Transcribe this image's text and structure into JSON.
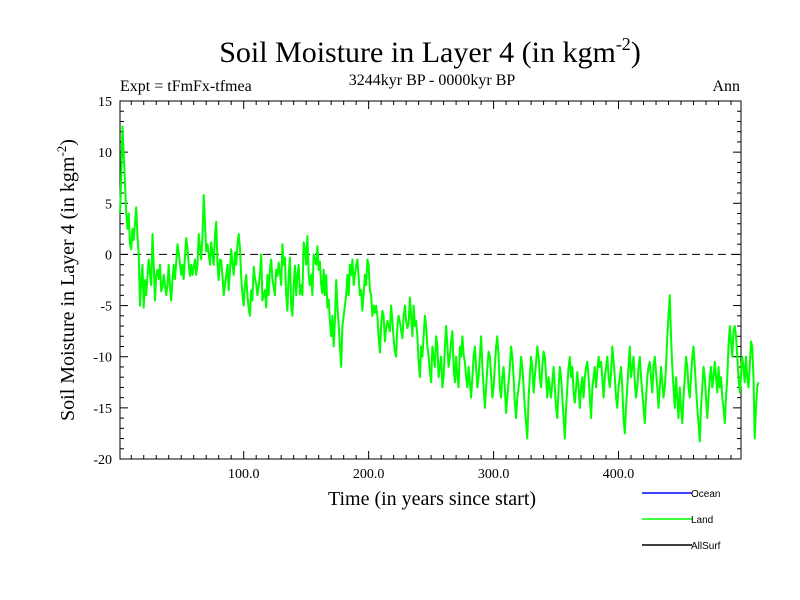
{
  "header": {
    "experiment": "Expt = tFmFx-tfmea",
    "period": "3244kyr BP - 0000kyr BP",
    "season": "Ann"
  },
  "chart_data": {
    "type": "line",
    "title": "Soil Moisture in Layer 4 (in kgm",
    "title_sup": "-2",
    "title_end": ")",
    "xlabel": "Time (in years since start)",
    "ylabel": "Soil Moisture in Layer 4 (in kgm",
    "ylabel_sup": "-2",
    "ylabel_end": ")",
    "xlim": [
      1,
      498
    ],
    "ylim": [
      -20,
      15
    ],
    "x_ticks": [
      100,
      200,
      300,
      400
    ],
    "x_tick_labels": [
      "100.0",
      "200.0",
      "300.0",
      "400.0"
    ],
    "y_ticks": [
      15,
      10,
      5,
      0,
      -5,
      -10,
      -15,
      -20
    ],
    "y_tick_labels": [
      "15",
      "10",
      "5",
      "0",
      "-5",
      "-10",
      "-15",
      "-20"
    ],
    "reference_line": 0,
    "legend": [
      {
        "name": "Ocean",
        "color": "#0000ff"
      },
      {
        "name": "Land",
        "color": "#00ff00"
      },
      {
        "name": "AllSurf",
        "color": "#000000"
      }
    ],
    "series": [
      {
        "name": "Land",
        "color": "#00ff00",
        "x_start": 1,
        "x_step": 1,
        "values": [
          4.0,
          7.5,
          12.5,
          9.8,
          7.0,
          4.1,
          2.5,
          4.0,
          1.0,
          0.5,
          2.5,
          1.4,
          3.0,
          4.6,
          1.8,
          0.0,
          -5.0,
          -2.5,
          -1.0,
          -5.2,
          -2.5,
          -4.0,
          -2.1,
          -0.5,
          -1.9,
          -3.0,
          2.0,
          -1.0,
          -4.5,
          -2.0,
          -1.5,
          -2.4,
          -1.0,
          -3.6,
          -3.2,
          -2.0,
          -2.9,
          -4.0,
          -3.0,
          -1.0,
          -3.2,
          -4.5,
          -2.4,
          -1.0,
          -2.4,
          -0.8,
          1.0,
          0.2,
          -1.0,
          -2.0,
          -1.0,
          -2.4,
          -0.2,
          1.6,
          0.6,
          -0.9,
          -2.1,
          -1.0,
          -2.0,
          -1.2,
          -0.5,
          -2.0,
          -1.0,
          2.0,
          0.6,
          -0.5,
          1.8,
          5.8,
          3.0,
          0.3,
          1.0,
          0.0,
          -1.0,
          1.2,
          0.0,
          -1.0,
          2.0,
          3.2,
          -1.0,
          -2.5,
          -0.5,
          -0.6,
          -2.2,
          -4.0,
          -3.0,
          -2.1,
          -1.0,
          -3.5,
          -1.5,
          0.5,
          -1.0,
          -2.0,
          0.2,
          -1.0,
          1.0,
          2.0,
          0.6,
          -2.2,
          -4.0,
          -5.0,
          -3.0,
          -2.0,
          -4.0,
          -5.3,
          -6.0,
          -3.5,
          -4.5,
          -1.2,
          -2.3,
          -2.9,
          -4.0,
          -3.0,
          -2.0,
          0.0,
          -4.5,
          -4.0,
          -3.5,
          -5.2,
          -2.0,
          -4.0,
          -1.5,
          -0.5,
          -2.4,
          -3.2,
          -4.0,
          -1.5,
          -2.1,
          -0.8,
          -1.8,
          -3.0,
          1.0,
          -1.0,
          -0.3,
          -4.0,
          -5.5,
          -2.0,
          -0.3,
          -5.0,
          -6.0,
          -3.0,
          -1.1,
          -4.0,
          -2.0,
          -1.0,
          -3.9,
          -3.0,
          -4.0,
          1.2,
          0.6,
          -1.0,
          1.8,
          -2.0,
          -3.0,
          -2.0,
          -4.0,
          0.0,
          -0.5,
          -1.0,
          0.8,
          -1.5,
          -0.7,
          -3.0,
          -3.8,
          -1.5,
          -4.0,
          -2.0,
          -5.2,
          -4.4,
          -6.5,
          -8.0,
          -6.0,
          -9.0,
          -6.5,
          -2.5,
          -5.0,
          -7.0,
          -9.0,
          -11.0,
          -7.0,
          -6.0,
          -5.0,
          -4.0,
          -2.0,
          -4.0,
          -1.0,
          -2.0,
          -0.5,
          -3.0,
          -2.0,
          -1.0,
          -0.5,
          -2.3,
          -4.0,
          -3.5,
          -5.5,
          -3.8,
          -2.0,
          -3.0,
          -0.5,
          -1.0,
          -3.5,
          -4.0,
          -6.0,
          -5.0,
          -5.7,
          -5.0,
          -6.0,
          -8.0,
          -9.6,
          -7.0,
          -5.5,
          -6.0,
          -8.5,
          -7.3,
          -6.5,
          -7.0,
          -7.5,
          -5.0,
          -6.5,
          -8.2,
          -9.5,
          -10.0,
          -7.0,
          -6.0,
          -6.6,
          -7.4,
          -8.2,
          -6.0,
          -5.0,
          -6.5,
          -7.2,
          -6.8,
          -4.2,
          -6.0,
          -8.0,
          -5.0,
          -7.0,
          -6.5,
          -8.0,
          -10.5,
          -12.0,
          -9.0,
          -10.0,
          -8.0,
          -6.0,
          -7.0,
          -9.0,
          -10.0,
          -11.5,
          -12.5,
          -9.0,
          -10.0,
          -11.0,
          -8.0,
          -9.0,
          -12.0,
          -11.0,
          -10.0,
          -13.0,
          -12.0,
          -9.0,
          -7.0,
          -9.0,
          -11.0,
          -10.0,
          -8.5,
          -7.5,
          -11.0,
          -12.5,
          -10.0,
          -12.0,
          -13.0,
          -9.0,
          -10.0,
          -8.0,
          -9.8,
          -10.5,
          -12.0,
          -13.0,
          -11.0,
          -12.5,
          -14.0,
          -12.0,
          -10.0,
          -9.0,
          -11.0,
          -13.0,
          -12.0,
          -10.0,
          -8.0,
          -11.0,
          -13.0,
          -15.0,
          -13.0,
          -11.0,
          -9.5,
          -10.0,
          -12.0,
          -14.0,
          -13.0,
          -11.0,
          -9.0,
          -8.0,
          -10.0,
          -13.0,
          -14.0,
          -12.0,
          -11.0,
          -13.0,
          -15.5,
          -14.0,
          -12.5,
          -11.0,
          -9.0,
          -10.0,
          -12.0,
          -14.5,
          -16.0,
          -14.0,
          -13.0,
          -12.0,
          -10.0,
          -11.0,
          -13.0,
          -15.0,
          -16.5,
          -18.0,
          -14.0,
          -12.0,
          -10.0,
          -11.0,
          -13.5,
          -12.0,
          -10.5,
          -9.0,
          -10.0,
          -12.0,
          -13.0,
          -11.0,
          -9.5,
          -10.0,
          -12.0,
          -14.0,
          -12.0,
          -13.0,
          -14.0,
          -12.5,
          -11.0,
          -13.0,
          -15.0,
          -16.0,
          -13.0,
          -11.0,
          -12.0,
          -14.0,
          -16.0,
          -18.0,
          -15.0,
          -13.0,
          -11.0,
          -10.0,
          -12.0,
          -11.0,
          -13.5,
          -14.5,
          -13.0,
          -11.5,
          -13.0,
          -15.0,
          -13.0,
          -12.0,
          -14.0,
          -12.0,
          -11.0,
          -10.5,
          -12.0,
          -14.0,
          -16.0,
          -13.0,
          -12.0,
          -11.0,
          -13.0,
          -11.5,
          -10.0,
          -11.0,
          -10.5,
          -12.0,
          -14.0,
          -12.0,
          -11.0,
          -10.0,
          -12.0,
          -13.0,
          -11.5,
          -9.0,
          -10.5,
          -12.0,
          -14.0,
          -15.0,
          -13.0,
          -12.0,
          -11.0,
          -13.0,
          -16.0,
          -17.5,
          -15.0,
          -13.0,
          -11.0,
          -9.0,
          -12.0,
          -11.0,
          -10.0,
          -12.5,
          -14.0,
          -13.0,
          -11.0,
          -10.0,
          -12.0,
          -13.5,
          -15.0,
          -16.5,
          -14.0,
          -12.0,
          -11.0,
          -10.5,
          -12.0,
          -13.5,
          -11.0,
          -10.0,
          -11.5,
          -13.0,
          -15.0,
          -13.0,
          -11.0,
          -12.5,
          -14.0,
          -13.0,
          -11.0,
          -8.0,
          -6.0,
          -4.0,
          -8.0,
          -11.0,
          -13.0,
          -15.0,
          -12.0,
          -14.0,
          -16.0,
          -13.0,
          -15.0,
          -16.5,
          -14.0,
          -12.0,
          -10.0,
          -11.0,
          -13.0,
          -14.0,
          -12.0,
          -10.0,
          -9.0,
          -11.0,
          -13.0,
          -15.0,
          -16.5,
          -18.3,
          -15.0,
          -13.0,
          -11.0,
          -12.0,
          -14.0,
          -16.0,
          -14.0,
          -12.0,
          -11.0,
          -13.0,
          -12.0,
          -10.5,
          -12.0,
          -13.5,
          -11.0,
          -13.0,
          -12.0,
          -14.0,
          -15.0,
          -16.5,
          -14.0,
          -12.0,
          -9.0,
          -7.0,
          -8.5,
          -10.0,
          -7.5,
          -7.0,
          -8.0,
          -10.0,
          -12.0,
          -13.5,
          -12.0,
          -10.0,
          -11.0,
          -12.5,
          -10.0,
          -12.0,
          -13.0,
          -11.0,
          -8.5,
          -9.0,
          -12.0,
          -18.0,
          -15.0,
          -13.0,
          -12.5
        ]
      }
    ]
  }
}
